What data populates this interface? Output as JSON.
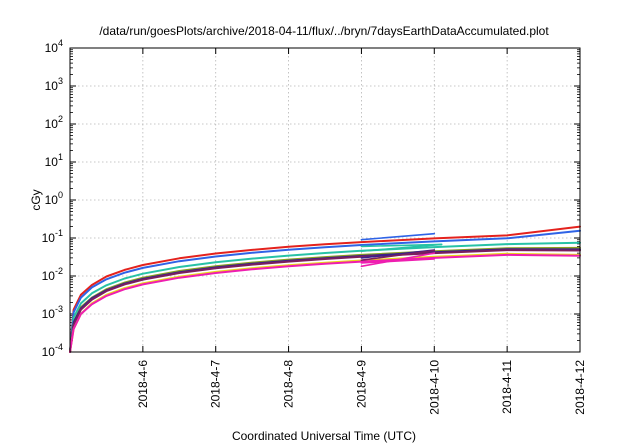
{
  "chart_data": {
    "type": "line",
    "title": "/data/run/goesPlots/archive/2018-04-11/flux/../bryn/7daysEarthDataAccumulated.plot",
    "xlabel": "Coordinated Universal Time (UTC)",
    "ylabel": "cGy",
    "y_scale": "log",
    "ylim": [
      0.0001,
      10000
    ],
    "xlim": [
      "2018-04-05",
      "2018-04-12"
    ],
    "grid": true,
    "y_ticks": [
      {
        "value": 0.0001,
        "base": "10",
        "exp": "-4"
      },
      {
        "value": 0.001,
        "base": "10",
        "exp": "-3"
      },
      {
        "value": 0.01,
        "base": "10",
        "exp": "-2"
      },
      {
        "value": 0.1,
        "base": "10",
        "exp": "-1"
      },
      {
        "value": 1,
        "base": "10",
        "exp": "0"
      },
      {
        "value": 10,
        "base": "10",
        "exp": "1"
      },
      {
        "value": 100,
        "base": "10",
        "exp": "2"
      },
      {
        "value": 1000,
        "base": "10",
        "exp": "3"
      },
      {
        "value": 10000,
        "base": "10",
        "exp": "4"
      }
    ],
    "x_ticks": [
      "2018-4-6",
      "2018-4-7",
      "2018-4-8",
      "2018-4-9",
      "2018-4-10",
      "2018-4-11",
      "2018-4-12"
    ],
    "series": [
      {
        "color": "#e4221d",
        "x": [
          0.0,
          0.05,
          0.15,
          0.3,
          0.5,
          0.75,
          1.0,
          1.5,
          2.0,
          2.5,
          3.0,
          3.5,
          4.0,
          5.0,
          6.0,
          7.0
        ],
        "y": [
          0.0001,
          0.0013,
          0.0032,
          0.0058,
          0.0097,
          0.0145,
          0.0195,
          0.0292,
          0.039,
          0.0487,
          0.0585,
          0.0682,
          0.078,
          0.0975,
          0.117,
          0.2
        ]
      },
      {
        "color": "#2f63e6",
        "x": [
          0.0,
          0.05,
          0.15,
          0.3,
          0.5,
          0.75,
          1.0,
          1.5,
          2.0,
          2.5,
          3.0,
          3.5,
          4.0,
          5.0,
          6.0,
          7.0
        ],
        "y": [
          0.0001,
          0.0011,
          0.0027,
          0.005,
          0.0082,
          0.0122,
          0.0163,
          0.0245,
          0.0326,
          0.0408,
          0.049,
          0.0571,
          0.0653,
          0.0816,
          0.098,
          0.155
        ]
      },
      {
        "color": "#27c2a6",
        "x": [
          0.0,
          0.05,
          0.15,
          0.3,
          0.5,
          0.75,
          1.0,
          1.5,
          2.0,
          2.5,
          3.0,
          3.5,
          4.0,
          5.0,
          6.0,
          7.0
        ],
        "y": [
          0.0001,
          0.0008,
          0.0019,
          0.0035,
          0.0057,
          0.0086,
          0.0115,
          0.0172,
          0.023,
          0.0287,
          0.0345,
          0.0402,
          0.046,
          0.0575,
          0.069,
          0.075
        ]
      },
      {
        "color": "#8aa020",
        "x": [
          0.0,
          0.05,
          0.15,
          0.3,
          0.5,
          0.75,
          1.0,
          1.5,
          2.0,
          2.5,
          3.0,
          3.5,
          4.0,
          5.0,
          6.0,
          7.0
        ],
        "y": [
          0.0001,
          0.0006,
          0.0015,
          0.0027,
          0.0045,
          0.0067,
          0.009,
          0.0135,
          0.018,
          0.0225,
          0.027,
          0.0315,
          0.036,
          0.045,
          0.054,
          0.055
        ]
      },
      {
        "color": "#3a1f8c",
        "x": [
          0.0,
          0.05,
          0.15,
          0.3,
          0.5,
          0.75,
          1.0,
          1.5,
          2.0,
          2.5,
          3.0,
          3.5,
          4.0,
          5.0,
          6.0,
          7.0
        ],
        "y": [
          0.0001,
          0.0006,
          0.0014,
          0.0026,
          0.0042,
          0.0063,
          0.0084,
          0.0126,
          0.0168,
          0.021,
          0.0252,
          0.0294,
          0.0336,
          0.042,
          0.0504,
          0.05
        ]
      },
      {
        "color": "#7a1f5e",
        "x": [
          0.0,
          0.05,
          0.15,
          0.3,
          0.5,
          0.75,
          1.0,
          1.5,
          2.0,
          2.5,
          3.0,
          3.5,
          4.0,
          5.0,
          6.0,
          7.0
        ],
        "y": [
          0.0001,
          0.0005,
          0.0013,
          0.0024,
          0.004,
          0.006,
          0.008,
          0.012,
          0.016,
          0.02,
          0.024,
          0.028,
          0.032,
          0.04,
          0.048,
          0.047
        ]
      },
      {
        "color": "#e8d81a",
        "x": [
          0.0,
          0.05,
          0.15,
          0.3,
          0.5,
          0.75,
          1.0,
          1.5,
          2.0,
          2.5,
          3.0,
          3.5,
          4.0,
          5.0,
          6.0,
          7.0
        ],
        "y": [
          0.0001,
          0.0004,
          0.001,
          0.0019,
          0.0032,
          0.0048,
          0.0064,
          0.0096,
          0.0128,
          0.016,
          0.0192,
          0.0224,
          0.0256,
          0.032,
          0.0384,
          0.036
        ]
      },
      {
        "color": "#ee1eb0",
        "x": [
          0.0,
          0.05,
          0.15,
          0.3,
          0.5,
          0.75,
          1.0,
          1.5,
          2.0,
          2.5,
          3.0,
          3.5,
          4.0,
          5.0,
          6.0,
          7.0
        ],
        "y": [
          0.0001,
          0.0004,
          0.001,
          0.0018,
          0.003,
          0.0045,
          0.006,
          0.009,
          0.012,
          0.015,
          0.018,
          0.021,
          0.024,
          0.03,
          0.036,
          0.034
        ]
      }
    ],
    "overlay_series": [
      {
        "color": "#2f63e6",
        "x": [
          4.0,
          5.0
        ],
        "y": [
          0.09,
          0.13
        ]
      },
      {
        "color": "#27c2a6",
        "x": [
          4.0,
          5.1
        ],
        "y": [
          0.06,
          0.068
        ]
      },
      {
        "color": "#27c2a6",
        "x": [
          4.0,
          5.1
        ],
        "y": [
          0.045,
          0.068
        ]
      },
      {
        "color": "#3a1f8c",
        "x": [
          4.0,
          5.0
        ],
        "y": [
          0.03,
          0.048
        ]
      },
      {
        "color": "#7a1f5e",
        "x": [
          4.0,
          5.0
        ],
        "y": [
          0.026,
          0.047
        ]
      },
      {
        "color": "#ee1eb0",
        "x": [
          4.0,
          5.0
        ],
        "y": [
          0.018,
          0.04
        ]
      },
      {
        "color": "#ee1eb0",
        "x": [
          4.0,
          5.0
        ],
        "y": [
          0.022,
          0.028
        ]
      }
    ]
  }
}
